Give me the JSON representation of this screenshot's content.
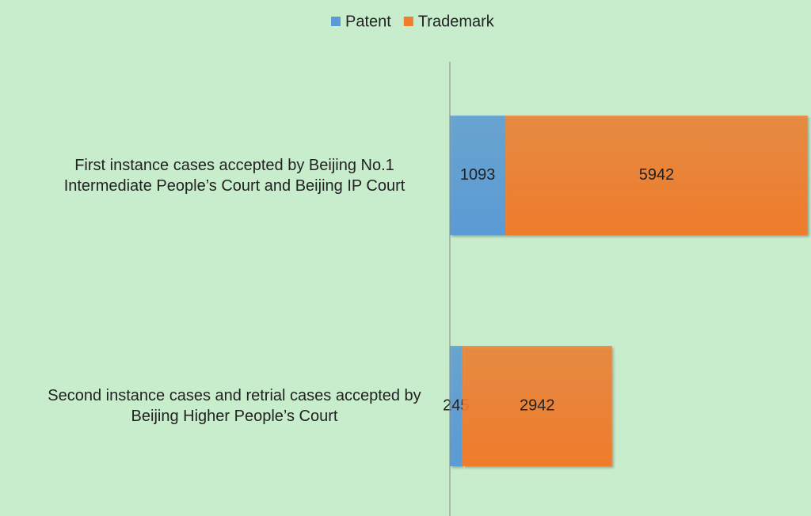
{
  "chart_data": {
    "type": "bar",
    "orientation": "horizontal",
    "stacked": true,
    "categories": [
      "First instance cases accepted by Beijing No.1 Intermediate People’s Court and Beijing IP Court",
      "Second instance cases and retrial cases accepted by Beijing Higher People’s Court"
    ],
    "series": [
      {
        "name": "Patent",
        "color": "#5b9bd5",
        "values": [
          1093,
          245
        ]
      },
      {
        "name": "Trademark",
        "color": "#f07c2c",
        "values": [
          5942,
          2942
        ]
      }
    ],
    "xlim": [
      0,
      7100
    ],
    "legend": "top"
  }
}
